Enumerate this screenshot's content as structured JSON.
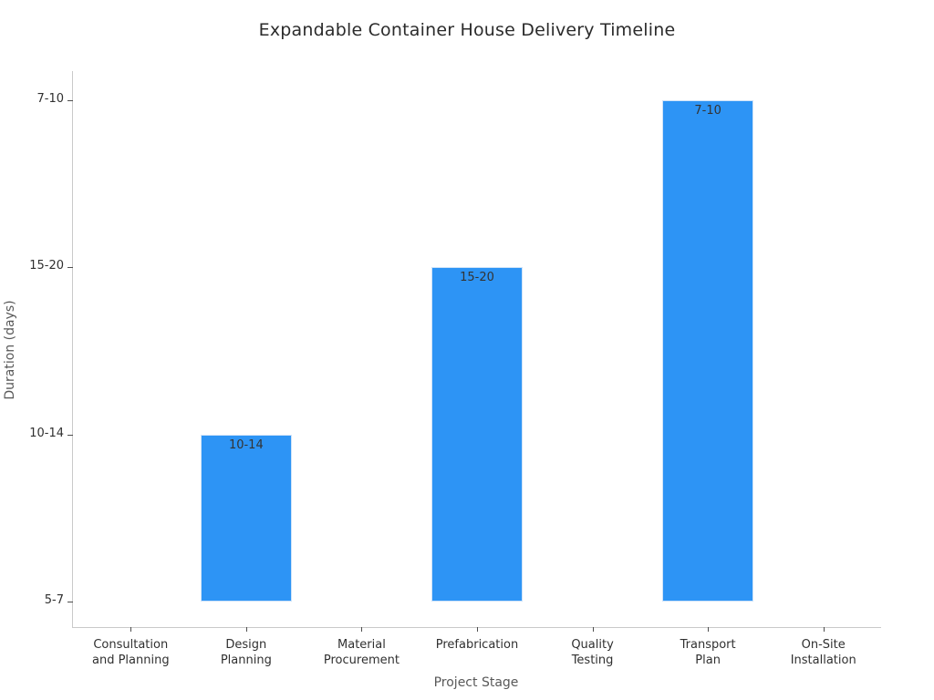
{
  "chart_data": {
    "type": "bar",
    "title": "Expandable Container House Delivery Timeline",
    "xlabel": "Project Stage",
    "ylabel": "Duration (days)",
    "categories": [
      "Consultation\nand Planning",
      "Design\nPlanning",
      "Material\nProcurement",
      "Prefabrication",
      "Quality\nTesting",
      "Transport\nPlan",
      "On-Site\nInstallation"
    ],
    "values": [
      "5-7",
      "10-14",
      "5-7",
      "15-20",
      "5-7",
      "7-10",
      "5-7"
    ],
    "y_tick_labels_bottom_to_top": [
      "5-7",
      "10-14",
      "15-20",
      "7-10"
    ],
    "bar_value_labels_visible": [
      "10-14",
      "15-20",
      "7-10"
    ],
    "grid": false,
    "legend": false,
    "colors": {
      "bar_fill": "#2d94f5",
      "bar_edge": "#cfe3f8",
      "spine": "#c9c9c9",
      "tick_text": "#303030",
      "axis_label_text": "#595959",
      "title_text": "#2b2b2b",
      "background": "#ffffff"
    }
  }
}
